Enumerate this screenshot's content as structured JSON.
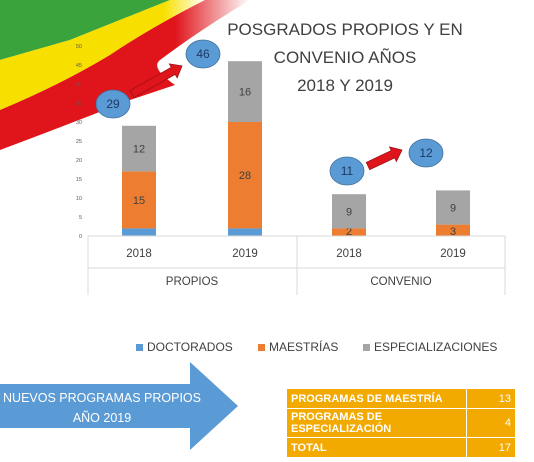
{
  "title_line1": "POSGRADOS PROPIOS Y EN CONVENIO AÑOS",
  "title_line2": "2018 Y 2019",
  "chart_data": {
    "type": "bar",
    "stacked": true,
    "y_ticks": [
      0,
      5,
      10,
      15,
      20,
      25,
      30,
      35,
      40,
      45,
      50
    ],
    "ylim": [
      0,
      50
    ],
    "groups": [
      "PROPIOS",
      "CONVENIO"
    ],
    "categories": [
      "2018",
      "2019",
      "2018",
      "2019"
    ],
    "category_group": [
      0,
      0,
      1,
      1
    ],
    "series": [
      {
        "name": "DOCTORADOS",
        "color": "#5b9bd5",
        "values": [
          2,
          2,
          0,
          0
        ],
        "labels": [
          "",
          "",
          "",
          ""
        ]
      },
      {
        "name": "MAESTRÍAS",
        "color": "#ed7d31",
        "values": [
          15,
          28,
          2,
          3
        ],
        "labels": [
          "15",
          "28",
          "2",
          "3"
        ]
      },
      {
        "name": "ESPECIALIZACIONES",
        "color": "#a5a5a5",
        "values": [
          12,
          16,
          9,
          9
        ],
        "labels": [
          "12",
          "16",
          "9",
          "9"
        ]
      }
    ],
    "annotations": [
      {
        "from": "29",
        "to": "46"
      },
      {
        "from": "11",
        "to": "12"
      }
    ]
  },
  "legend": [
    "DOCTORADOS",
    "MAESTRÍAS",
    "ESPECIALIZACIONES"
  ],
  "banner": {
    "text": "NUEVOS PROGRAMAS PROPIOS AÑO 2019"
  },
  "summary_table": [
    {
      "label": "PROGRAMAS DE MAESTRÍA",
      "value": "13"
    },
    {
      "label": "PROGRAMAS DE ESPECIALIZACIÓN",
      "value": "4"
    },
    {
      "label": "TOTAL",
      "value": "17"
    }
  ],
  "colors": {
    "flag_green": "#3ba33b",
    "flag_yellow": "#f7e000",
    "flag_red": "#e0141b",
    "bubble": "#5b9bd5",
    "arrow": "#e0141b",
    "table": "#f2a900"
  }
}
